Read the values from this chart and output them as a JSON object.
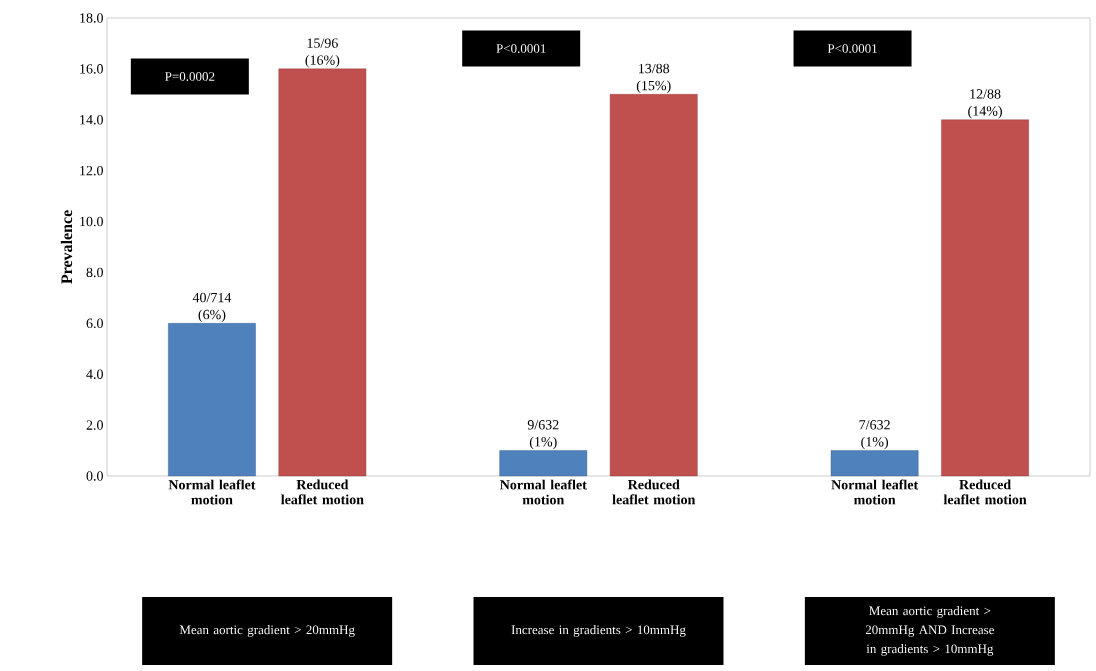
{
  "chart_data": {
    "type": "bar",
    "ylabel": "Prevalence",
    "categories": [
      "Normal leaflet motion",
      "Reduced leaflet motion",
      null,
      "Normal leaflet motion",
      "Reduced leaflet motion",
      null,
      "Normal leaflet motion",
      "Reduced leaflet motion"
    ],
    "values": [
      6,
      16,
      null,
      1,
      15,
      null,
      1,
      14
    ],
    "colors": [
      "#4f81bd",
      "#c0504d",
      "#ffffff",
      "#4f81bd",
      "#c0504d",
      "#ffffff",
      "#4f81bd",
      "#c0504d"
    ],
    "value_labels": [
      "40/714 (6%)",
      "15/96 (16%)",
      null,
      "9/632 (1%)",
      "13/88 (15%)",
      null,
      "7/632 (1%)",
      "12/88 (14%)"
    ],
    "ylim": [
      0,
      18
    ],
    "yticks": [
      {
        "value": 0,
        "label": "0.0"
      },
      {
        "value": 2,
        "label": "2.0"
      },
      {
        "value": 4,
        "label": "4.0"
      },
      {
        "value": 6,
        "label": "6.0"
      },
      {
        "value": 8,
        "label": "8.0"
      },
      {
        "value": 10,
        "label": "10.0"
      },
      {
        "value": 12,
        "label": "12.0"
      },
      {
        "value": 14,
        "label": "14.0"
      },
      {
        "value": 16,
        "label": "16.0"
      },
      {
        "value": 18,
        "label": "18.0"
      }
    ],
    "annotations": [
      "P=0.0002",
      "P<0.0001",
      "P<0.0001",
      "Mean aortic gradient > 20mmHg",
      "Increase in gradients > 10mmHg",
      "Mean aortic gradient > 20mmHg AND Increase in gradients > 10mmHg"
    ],
    "grid": false
  }
}
